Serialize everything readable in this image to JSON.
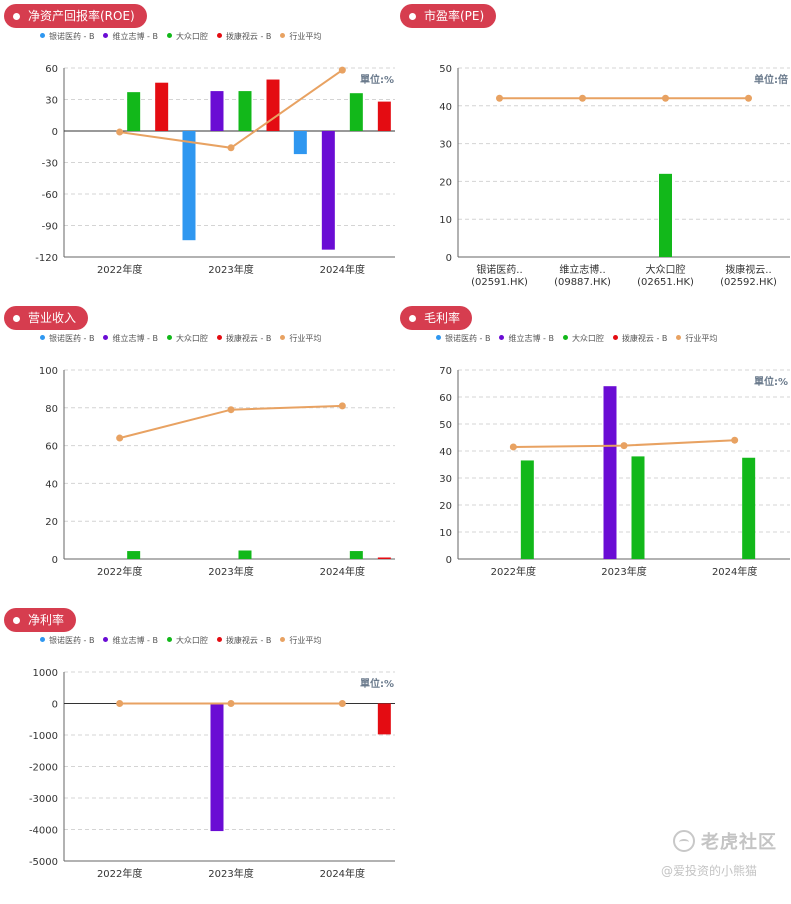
{
  "legend": {
    "items": [
      {
        "label": "银诺医药 - B",
        "color": "#2f97f0"
      },
      {
        "label": "维立志博 - B",
        "color": "#6a0cd4"
      },
      {
        "label": "大众口腔",
        "color": "#12b81a"
      },
      {
        "label": "拨康视云 - B",
        "color": "#e40c12"
      },
      {
        "label": "行业平均",
        "color": "#e8a262"
      }
    ]
  },
  "watermark": {
    "main": "老虎社区",
    "sub": "@爱投资的小熊猫"
  },
  "chart_data": [
    {
      "id": "roe",
      "title": "净资产回报率(ROE)",
      "type": "bar",
      "unit_label": "單位:%",
      "legend": true,
      "categories": [
        "2022年度",
        "2023年度",
        "2024年度"
      ],
      "ylim": [
        -120,
        60
      ],
      "yticks": [
        60,
        30,
        0,
        -30,
        -60,
        -90,
        -120
      ],
      "series": [
        {
          "name": "银诺医药 - B",
          "color": "#2f97f0",
          "values": [
            null,
            -104,
            -22
          ]
        },
        {
          "name": "维立志博 - B",
          "color": "#6a0cd4",
          "values": [
            null,
            38,
            -113
          ]
        },
        {
          "name": "大众口腔",
          "color": "#12b81a",
          "values": [
            37,
            38,
            36
          ]
        },
        {
          "name": "拨康视云 - B",
          "color": "#e40c12",
          "values": [
            46,
            49,
            28
          ]
        }
      ],
      "line": {
        "name": "行业平均",
        "color": "#e8a262",
        "values": [
          -1,
          -16,
          58
        ]
      },
      "grid": true
    },
    {
      "id": "pe",
      "title": "市盈率(PE)",
      "type": "bar",
      "unit_label": "单位:倍",
      "legend": false,
      "categories": [
        "银诺医药..\n(02591.HK)",
        "维立志博..\n(09887.HK)",
        "大众口腔\n(02651.HK)",
        "拨康视云..\n(02592.HK)"
      ],
      "ylim": [
        0,
        50
      ],
      "yticks": [
        50,
        40,
        30,
        20,
        10,
        0
      ],
      "series": [
        {
          "name": "PE",
          "color": "#12b81a",
          "values": [
            null,
            null,
            22,
            null
          ]
        }
      ],
      "line": {
        "name": "行业平均",
        "color": "#e8a262",
        "values": [
          42,
          42,
          42,
          42
        ]
      },
      "grid": true
    },
    {
      "id": "revenue",
      "title": "营业收入",
      "type": "bar",
      "unit_label": "",
      "legend": true,
      "categories": [
        "2022年度",
        "2023年度",
        "2024年度"
      ],
      "ylim": [
        0,
        100
      ],
      "yticks": [
        100,
        80,
        60,
        40,
        20,
        0
      ],
      "series": [
        {
          "name": "银诺医药 - B",
          "color": "#2f97f0",
          "values": [
            null,
            null,
            null
          ]
        },
        {
          "name": "维立志博 - B",
          "color": "#6a0cd4",
          "values": [
            null,
            null,
            null
          ]
        },
        {
          "name": "大众口腔",
          "color": "#12b81a",
          "values": [
            4.2,
            4.5,
            4.2
          ]
        },
        {
          "name": "拨康视云 - B",
          "color": "#e40c12",
          "values": [
            null,
            null,
            0.8
          ]
        }
      ],
      "line": {
        "name": "行业平均",
        "color": "#e8a262",
        "values": [
          64,
          79,
          81
        ]
      },
      "grid": true
    },
    {
      "id": "gross_margin",
      "title": "毛利率",
      "type": "bar",
      "unit_label": "單位:%",
      "legend": true,
      "categories": [
        "2022年度",
        "2023年度",
        "2024年度"
      ],
      "ylim": [
        0,
        70
      ],
      "yticks": [
        70,
        60,
        50,
        40,
        30,
        20,
        10,
        0
      ],
      "series": [
        {
          "name": "银诺医药 - B",
          "color": "#2f97f0",
          "values": [
            null,
            null,
            null
          ]
        },
        {
          "name": "维立志博 - B",
          "color": "#6a0cd4",
          "values": [
            null,
            64,
            null
          ]
        },
        {
          "name": "大众口腔",
          "color": "#12b81a",
          "values": [
            36.5,
            38,
            37.5
          ]
        },
        {
          "name": "拨康视云 - B",
          "color": "#e40c12",
          "values": [
            null,
            null,
            null
          ]
        }
      ],
      "line": {
        "name": "行业平均",
        "color": "#e8a262",
        "values": [
          41.5,
          42,
          44
        ]
      },
      "grid": true
    },
    {
      "id": "net_margin",
      "title": "净利率",
      "type": "bar",
      "unit_label": "單位:%",
      "legend": true,
      "categories": [
        "2022年度",
        "2023年度",
        "2024年度"
      ],
      "ylim": [
        -5000,
        1000
      ],
      "yticks": [
        1000,
        0,
        -1000,
        -2000,
        -3000,
        -4000,
        -5000
      ],
      "series": [
        {
          "name": "银诺医药 - B",
          "color": "#2f97f0",
          "values": [
            null,
            null,
            null
          ]
        },
        {
          "name": "维立志博 - B",
          "color": "#6a0cd4",
          "values": [
            null,
            -4050,
            null
          ]
        },
        {
          "name": "大众口腔",
          "color": "#12b81a",
          "values": [
            null,
            null,
            null
          ]
        },
        {
          "name": "拨康视云 - B",
          "color": "#e40c12",
          "values": [
            null,
            null,
            -980
          ]
        }
      ],
      "line": {
        "name": "行业平均",
        "color": "#e8a262",
        "values": [
          0,
          0,
          0
        ]
      },
      "grid": true
    }
  ]
}
